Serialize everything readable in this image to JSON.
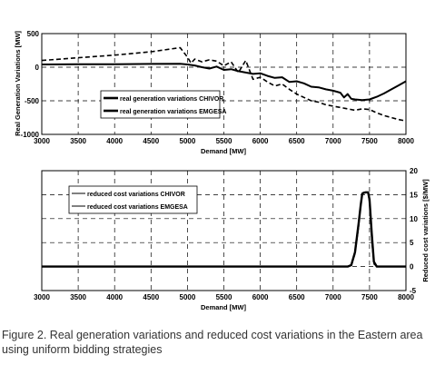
{
  "caption": "Figure 2. Real generation variations and reduced cost variations in the Eastern area using uniform bidding strategies",
  "chart_data": [
    {
      "type": "line",
      "title": "",
      "xlabel": "Demand [MW]",
      "ylabel": "Real Generation Variations [MW]",
      "xlim": [
        3000,
        8000
      ],
      "ylim": [
        -1000,
        500
      ],
      "xticks": [
        3000,
        3500,
        4000,
        4500,
        5000,
        5500,
        6000,
        6500,
        7000,
        7500,
        8000
      ],
      "yticks": [
        -1000,
        -500,
        0,
        500
      ],
      "grid": true,
      "legend_position": "center-left",
      "series": [
        {
          "name": "real generation variations  CHIVOR",
          "style": "solid",
          "x": [
            3000,
            3500,
            4000,
            4500,
            4900,
            5000,
            5100,
            5200,
            5300,
            5400,
            5500,
            5600,
            5700,
            5800,
            5900,
            6000,
            6100,
            6200,
            6300,
            6400,
            6500,
            6600,
            6700,
            6800,
            6900,
            7000,
            7100,
            7150,
            7200,
            7250,
            7300,
            7400,
            7500,
            7600,
            7700,
            7800,
            7900,
            8000
          ],
          "y": [
            40,
            45,
            45,
            48,
            50,
            40,
            25,
            0,
            -20,
            10,
            -40,
            -30,
            -60,
            -80,
            -100,
            -90,
            -130,
            -160,
            -150,
            -220,
            -210,
            -240,
            -290,
            -300,
            -330,
            -350,
            -380,
            -450,
            -400,
            -470,
            -480,
            -490,
            -480,
            -440,
            -390,
            -330,
            -270,
            -210
          ]
        },
        {
          "name": "real generation variations EMGESA",
          "style": "dashed",
          "x": [
            3000,
            3500,
            4000,
            4500,
            4900,
            5000,
            5050,
            5100,
            5200,
            5300,
            5400,
            5500,
            5600,
            5700,
            5800,
            5900,
            6000,
            6100,
            6200,
            6300,
            6400,
            6500,
            6600,
            6700,
            6800,
            6900,
            7000,
            7100,
            7200,
            7300,
            7400,
            7500,
            7600,
            7700,
            7800,
            7900,
            8000
          ],
          "y": [
            100,
            140,
            180,
            230,
            290,
            150,
            60,
            120,
            80,
            110,
            90,
            20,
            80,
            -80,
            100,
            -180,
            -150,
            -220,
            -280,
            -250,
            -330,
            -400,
            -450,
            -500,
            -520,
            -560,
            -580,
            -600,
            -620,
            -640,
            -620,
            -630,
            -680,
            -720,
            -750,
            -780,
            -800
          ]
        }
      ]
    },
    {
      "type": "line",
      "title": "",
      "xlabel": "Demand [MW]",
      "ylabel": "Reduced cost variations [$/MW]",
      "xlim": [
        3000,
        8000
      ],
      "ylim": [
        -5,
        20
      ],
      "xticks": [
        3000,
        3500,
        4000,
        4500,
        5000,
        5500,
        6000,
        6500,
        7000,
        7500,
        8000
      ],
      "yticks": [
        -5,
        0,
        5,
        10,
        15,
        20
      ],
      "y_axis_side": "right",
      "grid": true,
      "legend_position": "top-left",
      "series": [
        {
          "name": "reduced cost variations CHIVOR",
          "style": "solid",
          "x": [
            3000,
            7000,
            7200,
            7250,
            7300,
            7350,
            7380,
            7400,
            7420,
            7450,
            7480,
            7500,
            7530,
            7560,
            7600,
            8000
          ],
          "y": [
            0,
            0,
            0,
            0.3,
            3,
            9,
            13,
            15.2,
            15.4,
            15.5,
            15.5,
            14,
            7,
            1,
            0,
            0
          ]
        },
        {
          "name": "reduced cost variations EMGESA",
          "style": "solid",
          "x": [
            3000,
            7000,
            7200,
            7250,
            7300,
            7350,
            7380,
            7400,
            7420,
            7450,
            7480,
            7500,
            7530,
            7560,
            7600,
            8000
          ],
          "y": [
            0,
            0,
            0,
            0.3,
            2.5,
            8,
            12.5,
            15,
            15.3,
            15.5,
            15.4,
            13,
            5,
            0.5,
            0,
            0
          ]
        }
      ]
    }
  ]
}
